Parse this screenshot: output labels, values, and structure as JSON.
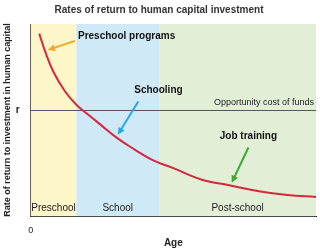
{
  "chart_data": {
    "type": "line",
    "title": "Rates of return to human capital investment",
    "x_label": "Age",
    "y_label": "Rate of return to investment in human capital",
    "xlim": [
      0,
      100
    ],
    "ylim": [
      0,
      100
    ],
    "xticks": [
      0
    ],
    "yticks": [
      {
        "value": 55,
        "label": "r"
      }
    ],
    "grid": false,
    "series": [
      {
        "name": "Rate of return",
        "color": "#d7263d",
        "x": [
          3,
          5,
          8,
          12,
          16,
          20,
          25,
          30,
          35,
          43,
          50,
          60,
          70,
          80,
          90,
          100
        ],
        "values": [
          95,
          86,
          75,
          65,
          58,
          53,
          47,
          41,
          36,
          29,
          25,
          19,
          16,
          13,
          11,
          10
        ]
      }
    ],
    "hline": {
      "y": 55,
      "label": "Opportunity cost of funds",
      "color": "#555555"
    },
    "regions": [
      {
        "label": "Preschool",
        "from": 0,
        "to": 16,
        "color": "#fdf6c8"
      },
      {
        "label": "School",
        "from": 16,
        "to": 45,
        "color": "#cfe9f6"
      },
      {
        "label": "Post-school",
        "from": 45,
        "to": 100,
        "color": "#e2efd6"
      }
    ],
    "annotations": [
      {
        "text": "Preschool programs",
        "point": 1,
        "color": "#f5a623"
      },
      {
        "text": "Schooling",
        "point": 7,
        "color": "#29a8e0"
      },
      {
        "text": "Job training",
        "point": 12,
        "color": "#3aaa35"
      }
    ]
  }
}
